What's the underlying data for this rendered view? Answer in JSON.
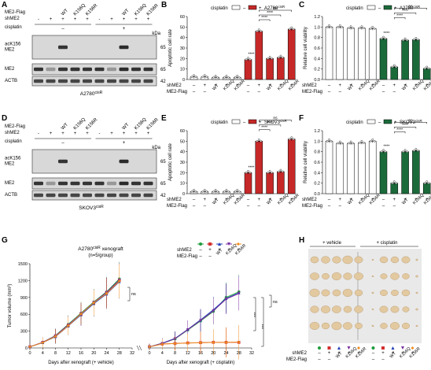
{
  "panels": [
    "A",
    "B",
    "C",
    "D",
    "E",
    "F",
    "G",
    "H"
  ],
  "blot": {
    "me2_flag_label": "ME2-Flag",
    "shme2_label": "shME2",
    "cisplatin_label": "cisplatin",
    "lane_labels": [
      "WT",
      "K156Q",
      "K156R",
      "WT",
      "K156Q",
      "K156R"
    ],
    "shme2_signs": [
      "-",
      "+",
      "+",
      "+",
      "+",
      "-",
      "+",
      "+",
      "+",
      "+"
    ],
    "cis_groups": [
      "–",
      "+"
    ],
    "kda": "kDa",
    "rows": [
      {
        "label": "acK156\nME2",
        "kda": "65"
      },
      {
        "label": "ME2",
        "kda": "65"
      },
      {
        "label": "ACTB",
        "kda": "42"
      }
    ],
    "cell_lines": [
      "A2780cisR",
      "SKOV3cisR"
    ]
  },
  "bar_common": {
    "legend_cisplatin": "cisplatin",
    "legend_minus": "–",
    "legend_plus": "+",
    "shme2_row": [
      "–",
      "+",
      "+",
      "+",
      "+",
      "–",
      "+",
      "+",
      "+",
      "+"
    ],
    "flag_row": [
      "–",
      "–",
      "WT",
      "K156Q",
      "K156R",
      "–",
      "–",
      "WT",
      "K156Q",
      "K156R"
    ],
    "row_labels": [
      "shME2",
      "ME2-Flag"
    ],
    "sig": [
      "****",
      "****",
      "****",
      "ns"
    ]
  },
  "chart_data": [
    {
      "panel": "B",
      "type": "bar",
      "ylabel": "Apoptotic cell rate",
      "ylim": [
        0,
        60
      ],
      "yticks": [
        0,
        10,
        20,
        30,
        40,
        50,
        60
      ],
      "legend_series": "A2780cisR",
      "values": [
        2.5,
        2.5,
        2,
        2,
        2,
        19,
        46,
        20,
        21,
        48
      ],
      "colors": [
        "#ffffff",
        "#ffffff",
        "#ffffff",
        "#ffffff",
        "#ffffff",
        "#c62828",
        "#c62828",
        "#c62828",
        "#c62828",
        "#c62828"
      ]
    },
    {
      "panel": "C",
      "type": "bar",
      "ylabel": "Relative cell viability",
      "ylim": [
        0,
        1.2
      ],
      "yticks": [
        0,
        0.2,
        0.4,
        0.6,
        0.8,
        1.0,
        1.2
      ],
      "legend_series": "A2780cisR",
      "values": [
        1.0,
        1.0,
        0.98,
        0.98,
        0.97,
        0.78,
        0.24,
        0.75,
        0.76,
        0.21
      ],
      "colors": [
        "#ffffff",
        "#ffffff",
        "#ffffff",
        "#ffffff",
        "#ffffff",
        "#1b6b3a",
        "#1b6b3a",
        "#1b6b3a",
        "#1b6b3a",
        "#1b6b3a"
      ]
    },
    {
      "panel": "E",
      "type": "bar",
      "ylabel": "Apoptotic cell rate",
      "ylim": [
        0,
        60
      ],
      "yticks": [
        0,
        10,
        20,
        30,
        40,
        50,
        60
      ],
      "legend_series": "SKOV3cisR",
      "values": [
        2,
        2,
        2,
        2,
        2,
        20,
        50,
        20,
        21,
        52
      ],
      "colors": [
        "#ffffff",
        "#ffffff",
        "#ffffff",
        "#ffffff",
        "#ffffff",
        "#c62828",
        "#c62828",
        "#c62828",
        "#c62828",
        "#c62828"
      ]
    },
    {
      "panel": "F",
      "type": "bar",
      "ylabel": "Relative cell viability",
      "ylim": [
        0,
        1.2
      ],
      "yticks": [
        0,
        0.2,
        0.4,
        0.6,
        0.8,
        1.0,
        1.2
      ],
      "legend_series": "SKOV3cisR",
      "values": [
        1.0,
        0.96,
        0.96,
        0.97,
        1.0,
        0.8,
        0.2,
        0.8,
        0.82,
        0.2
      ],
      "colors": [
        "#ffffff",
        "#ffffff",
        "#ffffff",
        "#ffffff",
        "#ffffff",
        "#1b6b3a",
        "#1b6b3a",
        "#1b6b3a",
        "#1b6b3a",
        "#1b6b3a"
      ]
    },
    {
      "panel": "G",
      "type": "line",
      "title": "A2780cisR xenograft",
      "subtitle": "(n=5/group)",
      "ylabel": "Tumor volume (mm³)",
      "xlabels": [
        "Days after xenograft (+ vehicle)",
        "Days after xenograft (+ cisplatin)"
      ],
      "ylim": [
        0,
        1500
      ],
      "yticks": [
        0,
        300,
        600,
        900,
        1200,
        1500
      ],
      "x": [
        0,
        4,
        8,
        12,
        16,
        20,
        24,
        28
      ],
      "xticks": [
        0,
        4,
        8,
        12,
        16,
        20,
        24,
        28,
        32
      ],
      "vehicle": [
        {
          "color": "#1e9c3c",
          "values": [
            20,
            100,
            220,
            420,
            620,
            820,
            1000,
            1230
          ]
        },
        {
          "color": "#d32f2f",
          "values": [
            20,
            100,
            210,
            400,
            600,
            800,
            980,
            1200
          ]
        },
        {
          "color": "#1f3fb5",
          "values": [
            20,
            95,
            200,
            390,
            590,
            790,
            960,
            1180
          ]
        },
        {
          "color": "#7b2fa0",
          "values": [
            20,
            100,
            215,
            410,
            610,
            810,
            990,
            1210
          ]
        },
        {
          "color": "#ef8c1e",
          "values": [
            20,
            95,
            205,
            395,
            605,
            805,
            970,
            1190
          ]
        }
      ],
      "cisplatin": [
        {
          "color": "#1e9c3c",
          "values": [
            20,
            80,
            160,
            320,
            480,
            650,
            900,
            1000
          ]
        },
        {
          "color": "#d32f2f",
          "values": [
            20,
            70,
            80,
            90,
            95,
            100,
            100,
            100
          ]
        },
        {
          "color": "#1f3fb5",
          "values": [
            20,
            85,
            170,
            330,
            500,
            680,
            880,
            980
          ]
        },
        {
          "color": "#7b2fa0",
          "values": [
            20,
            80,
            165,
            325,
            490,
            660,
            870,
            970
          ]
        },
        {
          "color": "#ef8c1e",
          "values": [
            20,
            70,
            78,
            88,
            92,
            98,
            100,
            105
          ]
        }
      ],
      "sig": [
        "ns",
        "ns",
        "***",
        "***"
      ]
    },
    {
      "panel": "H",
      "type": "table",
      "labels": [
        "+ vehicle",
        "+ cisplatin"
      ]
    }
  ],
  "legend_g": {
    "shme2": [
      "–",
      "+",
      "+",
      "+",
      "+"
    ],
    "flag": [
      "–",
      "–",
      "WT",
      "K156Q",
      "K156R"
    ]
  }
}
